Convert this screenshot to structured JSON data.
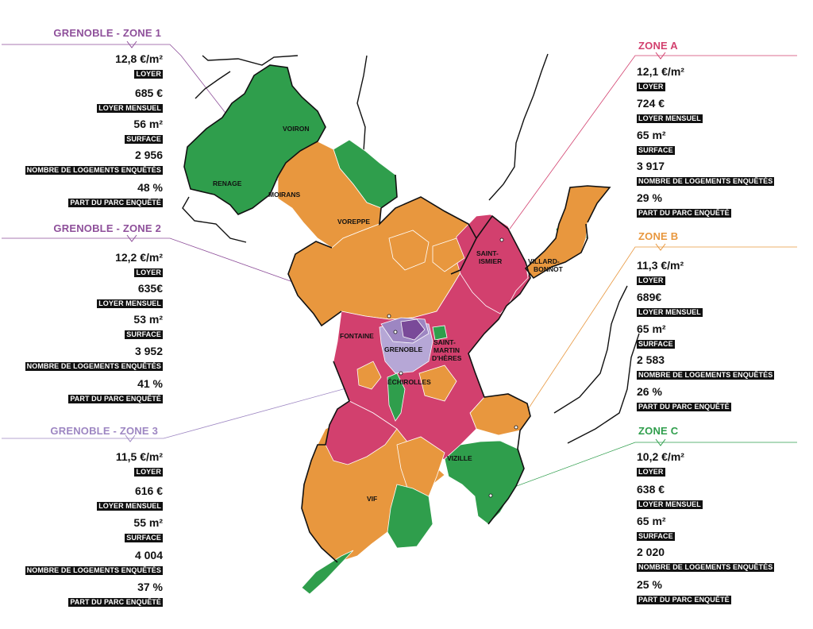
{
  "colors": {
    "zone_a": "#d2406e",
    "zone_b": "#e8973e",
    "zone_c": "#2f9e4c",
    "grenoble_zone1": "#7a4a99",
    "grenoble_zone2": "#9d86c2",
    "grenoble_zone3": "#b6a7d6"
  },
  "zones": [
    {
      "id": "grenoble-zone-1",
      "title": "GRENOBLE - ZONE 1",
      "color": "#8e4f9a",
      "stats": [
        {
          "value": "12,8 €/m²",
          "label": "LOYER"
        },
        {
          "value": "685 €",
          "label": "LOYER MENSUEL"
        },
        {
          "value": "56 m²",
          "label": "SURFACE"
        },
        {
          "value": "2 956",
          "label": "NOMBRE DE LOGEMENTS ENQUÊTÉS"
        },
        {
          "value": "48 %",
          "label": "PART DU PARC ENQUÊTÉ"
        }
      ]
    },
    {
      "id": "grenoble-zone-2",
      "title": "GRENOBLE - ZONE 2",
      "color": "#8e4f9a",
      "stats": [
        {
          "value": "12,2 €/m²",
          "label": "LOYER"
        },
        {
          "value": "635€",
          "label": "LOYER MENSUEL"
        },
        {
          "value": "53 m²",
          "label": "SURFACE"
        },
        {
          "value": "3 952",
          "label": "NOMBRE DE LOGEMENTS ENQUÊTÉS"
        },
        {
          "value": "41 %",
          "label": "PART DU PARC ENQUÊTÉ"
        }
      ]
    },
    {
      "id": "grenoble-zone-3",
      "title": "GRENOBLE - ZONE 3",
      "color": "#9d86c2",
      "stats": [
        {
          "value": "11,5 €/m²",
          "label": "LOYER"
        },
        {
          "value": "616  €",
          "label": "LOYER MENSUEL"
        },
        {
          "value": "55 m²",
          "label": "SURFACE"
        },
        {
          "value": "4 004",
          "label": "NOMBRE DE LOGEMENTS ENQUÊTÉS"
        },
        {
          "value": "37 %",
          "label": "PART DU PARC ENQUÊTÉ"
        }
      ]
    },
    {
      "id": "zone-a",
      "title": "ZONE A",
      "color": "#d2406e",
      "stats": [
        {
          "value": "12,1  €/m²",
          "label": "LOYER"
        },
        {
          "value": "724 €",
          "label": "LOYER MENSUEL"
        },
        {
          "value": "65 m²",
          "label": "SURFACE"
        },
        {
          "value": "3 917",
          "label": "NOMBRE DE LOGEMENTS ENQUÊTÉS"
        },
        {
          "value": "29 %",
          "label": "PART DU PARC ENQUÊTÉ"
        }
      ]
    },
    {
      "id": "zone-b",
      "title": "ZONE B",
      "color": "#e8973e",
      "stats": [
        {
          "value": "11,3 €/m²",
          "label": "LOYER"
        },
        {
          "value": "689€",
          "label": "LOYER MENSUEL"
        },
        {
          "value": "65 m²",
          "label": "SURFACE"
        },
        {
          "value": "2 583",
          "label": "NOMBRE DE LOGEMENTS ENQUÊTÉS"
        },
        {
          "value": "26 %",
          "label": "PART DU PARC ENQUÊTÉ"
        }
      ]
    },
    {
      "id": "zone-c",
      "title": "ZONE C",
      "color": "#2f9e4c",
      "stats": [
        {
          "value": "10,2 €/m²",
          "label": "LOYER"
        },
        {
          "value": "638 €",
          "label": "LOYER MENSUEL"
        },
        {
          "value": "65 m²",
          "label": "SURFACE"
        },
        {
          "value": "2 020",
          "label": "NOMBRE DE LOGEMENTS ENQUÊTÉS"
        },
        {
          "value": "25 %",
          "label": "PART DU PARC ENQUÊTÉ"
        }
      ]
    }
  ],
  "cities": {
    "voiron": "VOIRON",
    "renage": "RENAGE",
    "moirans": "MOIRANS",
    "voreppe": "VOREPPE",
    "saint_ismier_1": "SAINT-",
    "saint_ismier_2": "ISMIER",
    "villard_bonnot_1": "VILLARD-",
    "villard_bonnot_2": "BONNOT",
    "fontaine": "FONTAINE",
    "grenoble": "GRENOBLE",
    "saint_martin_1": "SAINT-",
    "saint_martin_2": "MARTIN",
    "saint_martin_3": "D'HÈRES",
    "echirolles": "ÉCHIROLLES",
    "vizille": "VIZILLE",
    "vif": "VIF"
  }
}
